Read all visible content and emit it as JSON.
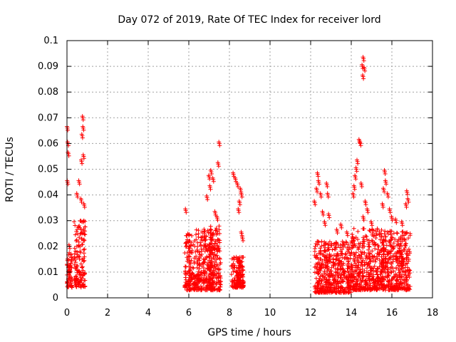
{
  "chart_data": {
    "type": "scatter",
    "title": "Day 072 of 2019, Rate Of TEC Index for receiver lord",
    "xlabel": "GPS time / hours",
    "ylabel": "ROTI / TECUs",
    "xlim": [
      0,
      18
    ],
    "ylim": [
      0,
      0.1
    ],
    "x_ticks": [
      "0",
      "2",
      "4",
      "6",
      "8",
      "10",
      "12",
      "14",
      "16",
      "18"
    ],
    "y_ticks": [
      "0",
      "0.01",
      "0.02",
      "0.03",
      "0.04",
      "0.05",
      "0.06",
      "0.07",
      "0.08",
      "0.09",
      "0.1"
    ],
    "grid": true,
    "marker": "+",
    "series_color": "#ff0000",
    "clusters": [
      {
        "x_start": 0.0,
        "x_end": 0.25,
        "y_low": 0.004,
        "y_high": 0.018,
        "outliers": [
          [
            0.02,
            0.066
          ],
          [
            0.05,
            0.06
          ],
          [
            0.07,
            0.056
          ],
          [
            0.12,
            0.02
          ],
          [
            0.03,
            0.045
          ]
        ]
      },
      {
        "x_start": 0.35,
        "x_end": 0.9,
        "y_low": 0.004,
        "y_high": 0.03,
        "outliers": [
          [
            0.78,
            0.07
          ],
          [
            0.8,
            0.066
          ],
          [
            0.75,
            0.063
          ],
          [
            0.82,
            0.055
          ],
          [
            0.72,
            0.053
          ],
          [
            0.6,
            0.045
          ],
          [
            0.5,
            0.04
          ],
          [
            0.85,
            0.036
          ],
          [
            0.7,
            0.038
          ]
        ]
      },
      {
        "x_start": 5.8,
        "x_end": 7.2,
        "y_low": 0.003,
        "y_high": 0.027,
        "outliers": [
          [
            5.85,
            0.034
          ],
          [
            6.9,
            0.039
          ],
          [
            7.0,
            0.047
          ],
          [
            7.1,
            0.049
          ],
          [
            7.2,
            0.046
          ],
          [
            7.05,
            0.043
          ]
        ]
      },
      {
        "x_start": 7.0,
        "x_end": 7.6,
        "y_low": 0.003,
        "y_high": 0.028,
        "outliers": [
          [
            7.5,
            0.06
          ],
          [
            7.45,
            0.052
          ],
          [
            7.3,
            0.033
          ],
          [
            7.4,
            0.031
          ]
        ]
      },
      {
        "x_start": 8.1,
        "x_end": 8.7,
        "y_low": 0.004,
        "y_high": 0.016,
        "outliers": [
          [
            8.2,
            0.048
          ],
          [
            8.3,
            0.046
          ],
          [
            8.4,
            0.044
          ],
          [
            8.55,
            0.042
          ],
          [
            8.6,
            0.04
          ],
          [
            8.5,
            0.037
          ],
          [
            8.45,
            0.034
          ],
          [
            8.6,
            0.025
          ],
          [
            8.65,
            0.023
          ]
        ]
      },
      {
        "x_start": 12.2,
        "x_end": 14.0,
        "y_low": 0.002,
        "y_high": 0.022,
        "outliers": [
          [
            12.35,
            0.048
          ],
          [
            12.4,
            0.045
          ],
          [
            12.3,
            0.042
          ],
          [
            12.5,
            0.04
          ],
          [
            12.8,
            0.044
          ],
          [
            12.85,
            0.04
          ],
          [
            12.2,
            0.037
          ],
          [
            12.6,
            0.033
          ],
          [
            12.9,
            0.032
          ],
          [
            13.5,
            0.028
          ],
          [
            13.3,
            0.026
          ],
          [
            13.8,
            0.025
          ],
          [
            12.7,
            0.029
          ]
        ]
      },
      {
        "x_start": 14.0,
        "x_end": 15.6,
        "y_low": 0.003,
        "y_high": 0.027,
        "outliers": [
          [
            14.6,
            0.093
          ],
          [
            14.55,
            0.09
          ],
          [
            14.65,
            0.089
          ],
          [
            14.58,
            0.086
          ],
          [
            14.4,
            0.061
          ],
          [
            14.45,
            0.06
          ],
          [
            14.3,
            0.053
          ],
          [
            14.25,
            0.05
          ],
          [
            14.2,
            0.047
          ],
          [
            14.15,
            0.043
          ],
          [
            14.1,
            0.04
          ],
          [
            14.5,
            0.044
          ],
          [
            14.7,
            0.037
          ],
          [
            14.8,
            0.034
          ],
          [
            14.6,
            0.031
          ],
          [
            15.0,
            0.029
          ]
        ]
      },
      {
        "x_start": 15.5,
        "x_end": 16.9,
        "y_low": 0.003,
        "y_high": 0.026,
        "outliers": [
          [
            15.65,
            0.049
          ],
          [
            15.7,
            0.045
          ],
          [
            15.6,
            0.042
          ],
          [
            15.8,
            0.04
          ],
          [
            15.55,
            0.036
          ],
          [
            15.9,
            0.034
          ],
          [
            16.0,
            0.031
          ],
          [
            16.75,
            0.041
          ],
          [
            16.8,
            0.038
          ],
          [
            16.7,
            0.036
          ],
          [
            16.2,
            0.03
          ],
          [
            16.5,
            0.029
          ]
        ]
      }
    ]
  }
}
